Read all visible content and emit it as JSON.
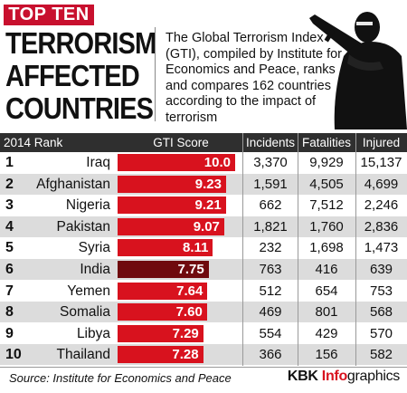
{
  "header": {
    "badge": "TOP TEN",
    "title_line1": "TERRORISM",
    "title_line2": "AFFECTED",
    "title_line3": "COUNTRIES",
    "description": "The Global Terrorism Index (GTI), compiled by Institute for Economics and Peace, ranks and compares 162 countries according to the impact of terrorism"
  },
  "columns": {
    "rank": "2014 Rank",
    "gti": "GTI Score",
    "incidents": "Incidents",
    "fatalities": "Fatalities",
    "injured": "Injured"
  },
  "colors": {
    "bar": "#d8121e",
    "highlight_bar": "#6f0a0e",
    "header_bg": "#2f2f2f",
    "alt_row": "#dcdcdc"
  },
  "chart_data": {
    "type": "bar",
    "orientation": "horizontal",
    "title": "TOP TEN TERRORISM AFFECTED COUNTRIES",
    "categories": [
      "Iraq",
      "Afghanistan",
      "Nigeria",
      "Pakistan",
      "Syria",
      "India",
      "Yemen",
      "Somalia",
      "Libya",
      "Thailand"
    ],
    "ranks": [
      "1",
      "2",
      "3",
      "4",
      "5",
      "6",
      "7",
      "8",
      "9",
      "10"
    ],
    "values": [
      10.0,
      9.23,
      9.21,
      9.07,
      8.11,
      7.75,
      7.64,
      7.6,
      7.29,
      7.28
    ],
    "value_labels": [
      "10.0",
      "9.23",
      "9.21",
      "9.07",
      "8.11",
      "7.75",
      "7.64",
      "7.60",
      "7.29",
      "7.28"
    ],
    "highlight": "India",
    "xlim": [
      0,
      10
    ],
    "incidents": [
      "3,370",
      "1,591",
      "662",
      "1,821",
      "232",
      "763",
      "512",
      "469",
      "554",
      "366"
    ],
    "fatalities": [
      "9,929",
      "4,505",
      "7,512",
      "1,760",
      "1,698",
      "416",
      "654",
      "801",
      "429",
      "156"
    ],
    "injured": [
      "15,137",
      "4,699",
      "2,246",
      "2,836",
      "1,473",
      "639",
      "753",
      "568",
      "570",
      "582"
    ]
  },
  "footer": {
    "source": "Source: Institute for Economics and Peace",
    "brand_kbk": "KBK",
    "brand_info": "Info",
    "brand_graphics": "graphics"
  }
}
